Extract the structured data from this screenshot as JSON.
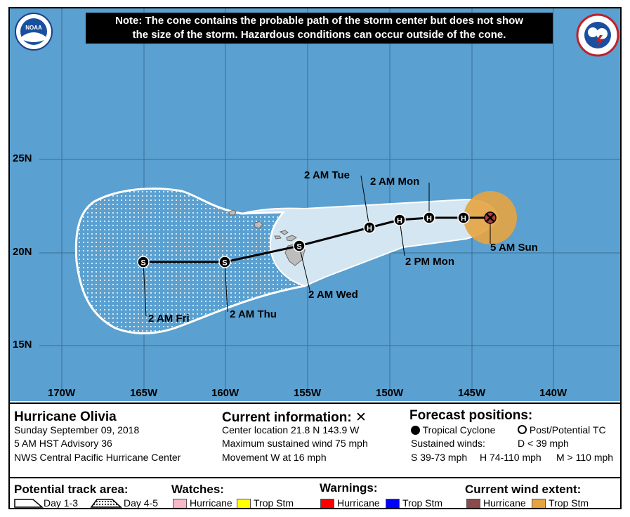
{
  "note": {
    "line1": "Note: The cone contains the probable path of the storm center but does not show",
    "line2": "the size of the storm. Hazardous conditions can occur outside of the cone."
  },
  "logos": {
    "noaa": "NOAA",
    "nws": "NATIONAL WEATHER SERVICE"
  },
  "lat_labels": [
    "25N",
    "20N",
    "15N"
  ],
  "lon_labels": [
    "170W",
    "165W",
    "160W",
    "155W",
    "150W",
    "145W",
    "140W"
  ],
  "track_points": [
    {
      "lon": 143.9,
      "lat": 21.8,
      "type": "current",
      "label": "5 AM Sun"
    },
    {
      "lon": 145.7,
      "lat": 21.8,
      "type": "H"
    },
    {
      "lon": 147.6,
      "lat": 21.8,
      "type": "H",
      "label": "2 AM Mon"
    },
    {
      "lon": 149.4,
      "lat": 21.7,
      "type": "H",
      "label": "2 PM Mon"
    },
    {
      "lon": 151.3,
      "lat": 21.3,
      "type": "H",
      "label": "2 AM Tue"
    },
    {
      "lon": 155.5,
      "lat": 20.3,
      "type": "S",
      "label": "2 AM Wed"
    },
    {
      "lon": 160.0,
      "lat": 19.5,
      "type": "S",
      "label": "2 AM Thu"
    },
    {
      "lon": 165.0,
      "lat": 19.5,
      "type": "S",
      "label": "2 AM Fri"
    }
  ],
  "storm": {
    "name": "Hurricane Olivia",
    "date": "Sunday September 09, 2018",
    "advisory": "5 AM HST Advisory 36",
    "center": "NWS Central Pacific Hurricane Center"
  },
  "current_info": {
    "title": "Current information:",
    "marker": "✕",
    "location": "Center location 21.8 N 143.9 W",
    "wind": "Maximum sustained wind 75 mph",
    "movement": "Movement W at 16 mph"
  },
  "forecast_positions": {
    "title": "Forecast positions:",
    "tropical": "Tropical Cyclone",
    "post": "Post/Potential TC",
    "sustained": "Sustained winds:",
    "d": "D < 39 mph",
    "s": "S 39-73 mph",
    "h": "H 74-110 mph",
    "m": "M > 110 mph"
  },
  "legend": {
    "track_title": "Potential track area:",
    "day13": "Day 1-3",
    "day45": "Day 4-5",
    "watches_title": "Watches:",
    "warnings_title": "Warnings:",
    "wind_title": "Current wind extent:",
    "hurricane": "Hurricane",
    "tropstm": "Trop Stm"
  },
  "colors": {
    "ocean": "#5aa0d0",
    "cone13": "#d4e6f2",
    "wind_tropstm": "#e5a440",
    "watch_hurricane": "#f8b8c8",
    "watch_tropstm": "#ffff00",
    "warn_hurricane": "#ff0000",
    "warn_tropstm": "#0000ff",
    "wind_hurricane": "#8b4a4a"
  }
}
